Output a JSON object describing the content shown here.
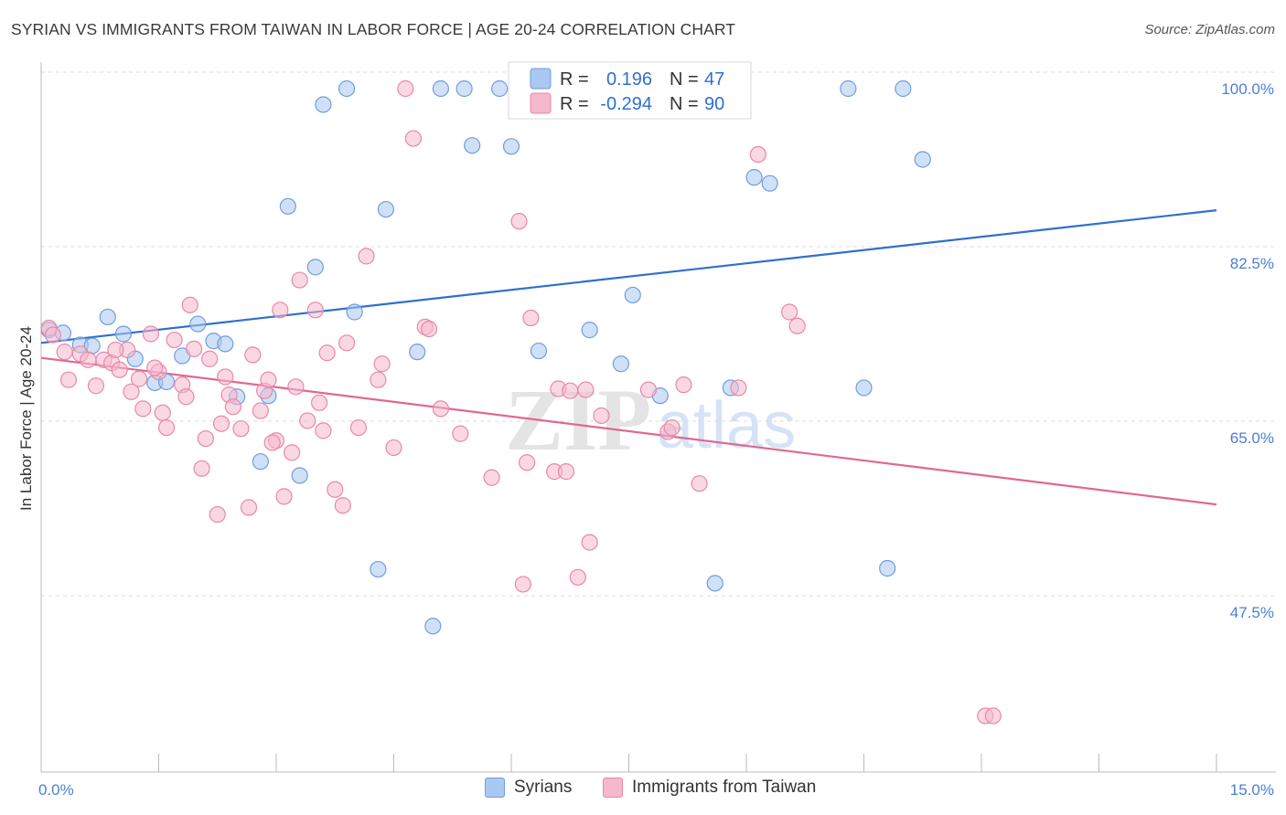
{
  "title": "SYRIAN VS IMMIGRANTS FROM TAIWAN IN LABOR FORCE | AGE 20-24 CORRELATION CHART",
  "source": "Source: ZipAtlas.com",
  "watermark": {
    "zip": "ZIP",
    "atlas": "atlas"
  },
  "colors": {
    "blue_fill": "#aac8f0",
    "blue_stroke": "#6f9de0",
    "blue_line": "#2f6fcf",
    "blue_text": "#2f6fcf",
    "pink_fill": "#f5b8cc",
    "pink_stroke": "#e888a8",
    "pink_line": "#e06890",
    "pink_text": "#e06890",
    "axis_label": "#4a7fd4",
    "grid": "#dcdcdc"
  },
  "legend_top": {
    "r_label": "R =",
    "n_label": "N =",
    "rows": [
      {
        "r": "0.196",
        "n": "47"
      },
      {
        "r": "-0.294",
        "n": "90"
      }
    ]
  },
  "chart_data": {
    "type": "scatter",
    "xlabel": "",
    "ylabel": "In Labor Force | Age 20-24",
    "xlim": [
      0,
      15
    ],
    "ylim": [
      30,
      103
    ],
    "x_tick_labels": [
      {
        "value": 0,
        "label": "0.0%"
      },
      {
        "value": 15,
        "label": "15.0%"
      }
    ],
    "y_ticks": [
      {
        "value": 47.5,
        "label": "47.5%"
      },
      {
        "value": 65.0,
        "label": "65.0%"
      },
      {
        "value": 82.5,
        "label": "82.5%"
      },
      {
        "value": 100.0,
        "label": "100.0%"
      }
    ],
    "series": [
      {
        "name": "Syrians",
        "color": "blue",
        "trend": {
          "x": [
            0,
            15
          ],
          "y": [
            74.5,
            87.8
          ]
        },
        "points": [
          [
            0.1,
            75.8
          ],
          [
            0.28,
            75.5
          ],
          [
            0.5,
            74.3
          ],
          [
            0.65,
            74.2
          ],
          [
            0.85,
            77.1
          ],
          [
            1.05,
            75.4
          ],
          [
            1.2,
            72.9
          ],
          [
            1.45,
            70.5
          ],
          [
            1.6,
            70.6
          ],
          [
            1.8,
            73.2
          ],
          [
            2.0,
            76.4
          ],
          [
            2.2,
            74.7
          ],
          [
            2.35,
            74.4
          ],
          [
            2.5,
            69.1
          ],
          [
            2.8,
            62.6
          ],
          [
            2.9,
            69.2
          ],
          [
            3.15,
            88.2
          ],
          [
            3.3,
            61.2
          ],
          [
            3.5,
            82.1
          ],
          [
            3.6,
            98.4
          ],
          [
            3.9,
            100.0
          ],
          [
            4.0,
            77.6
          ],
          [
            4.3,
            51.8
          ],
          [
            4.4,
            87.9
          ],
          [
            4.8,
            73.6
          ],
          [
            5.0,
            46.1
          ],
          [
            5.1,
            100.0
          ],
          [
            5.4,
            100.0
          ],
          [
            5.5,
            94.3
          ],
          [
            5.85,
            100.0
          ],
          [
            6.0,
            94.2
          ],
          [
            6.35,
            73.7
          ],
          [
            6.9,
            100.0
          ],
          [
            7.0,
            75.8
          ],
          [
            7.4,
            72.4
          ],
          [
            7.9,
            69.2
          ],
          [
            7.55,
            79.3
          ],
          [
            8.6,
            50.4
          ],
          [
            8.8,
            70.0
          ],
          [
            9.1,
            91.1
          ],
          [
            9.3,
            90.5
          ],
          [
            10.3,
            100.0
          ],
          [
            10.5,
            70.0
          ],
          [
            10.8,
            51.9
          ],
          [
            11.0,
            100.0
          ],
          [
            11.25,
            92.9
          ],
          [
            6.8,
            99.8
          ]
        ]
      },
      {
        "name": "Immigrants from Taiwan",
        "color": "pink",
        "trend": {
          "x": [
            0,
            15
          ],
          "y": [
            73.0,
            58.3
          ]
        },
        "points": [
          [
            0.1,
            76.0
          ],
          [
            0.15,
            75.3
          ],
          [
            0.3,
            73.6
          ],
          [
            0.35,
            70.8
          ],
          [
            0.5,
            73.4
          ],
          [
            0.6,
            72.8
          ],
          [
            0.7,
            70.2
          ],
          [
            0.8,
            72.8
          ],
          [
            0.9,
            72.5
          ],
          [
            1.0,
            71.8
          ],
          [
            1.1,
            73.8
          ],
          [
            1.15,
            69.6
          ],
          [
            1.25,
            70.9
          ],
          [
            1.3,
            67.9
          ],
          [
            1.4,
            75.4
          ],
          [
            1.5,
            71.6
          ],
          [
            1.55,
            67.5
          ],
          [
            1.6,
            66.0
          ],
          [
            1.7,
            74.8
          ],
          [
            1.8,
            70.3
          ],
          [
            1.85,
            69.1
          ],
          [
            1.9,
            78.3
          ],
          [
            1.95,
            73.9
          ],
          [
            2.05,
            61.9
          ],
          [
            2.1,
            64.9
          ],
          [
            2.15,
            72.9
          ],
          [
            2.25,
            57.3
          ],
          [
            2.35,
            71.1
          ],
          [
            2.4,
            69.3
          ],
          [
            2.45,
            68.1
          ],
          [
            2.55,
            65.9
          ],
          [
            2.65,
            58.0
          ],
          [
            2.7,
            73.3
          ],
          [
            2.8,
            67.7
          ],
          [
            2.85,
            69.7
          ],
          [
            2.9,
            70.8
          ],
          [
            3.0,
            64.7
          ],
          [
            3.05,
            77.8
          ],
          [
            3.1,
            59.1
          ],
          [
            3.2,
            63.5
          ],
          [
            3.25,
            70.1
          ],
          [
            3.3,
            80.8
          ],
          [
            3.4,
            66.7
          ],
          [
            3.5,
            77.8
          ],
          [
            3.55,
            68.5
          ],
          [
            3.65,
            73.5
          ],
          [
            3.75,
            59.8
          ],
          [
            3.85,
            58.2
          ],
          [
            3.9,
            74.5
          ],
          [
            4.05,
            66.0
          ],
          [
            4.15,
            83.2
          ],
          [
            4.3,
            70.8
          ],
          [
            4.35,
            72.4
          ],
          [
            4.5,
            64.0
          ],
          [
            4.65,
            100.0
          ],
          [
            4.75,
            95.0
          ],
          [
            4.9,
            76.1
          ],
          [
            5.1,
            67.9
          ],
          [
            5.35,
            65.4
          ],
          [
            5.75,
            61.0
          ],
          [
            6.1,
            86.7
          ],
          [
            6.15,
            50.3
          ],
          [
            6.25,
            77.0
          ],
          [
            6.55,
            61.6
          ],
          [
            6.6,
            69.9
          ],
          [
            6.7,
            61.6
          ],
          [
            6.75,
            69.7
          ],
          [
            6.85,
            51.0
          ],
          [
            7.0,
            54.5
          ],
          [
            7.1,
            100.0
          ],
          [
            7.15,
            67.2
          ],
          [
            7.75,
            69.8
          ],
          [
            8.0,
            65.6
          ],
          [
            8.2,
            70.3
          ],
          [
            8.4,
            60.4
          ],
          [
            8.9,
            70.0
          ],
          [
            9.15,
            93.4
          ],
          [
            9.55,
            77.6
          ],
          [
            9.65,
            76.2
          ],
          [
            12.05,
            37.1
          ],
          [
            12.15,
            37.1
          ],
          [
            2.3,
            66.4
          ],
          [
            6.95,
            69.8
          ],
          [
            0.95,
            73.8
          ],
          [
            1.45,
            72.0
          ],
          [
            2.95,
            64.5
          ],
          [
            3.6,
            65.7
          ],
          [
            4.95,
            75.9
          ],
          [
            6.2,
            62.5
          ],
          [
            8.05,
            66.0
          ]
        ]
      }
    ]
  },
  "bottom_legend": [
    {
      "label": "Syrians",
      "color": "blue"
    },
    {
      "label": "Immigrants from Taiwan",
      "color": "pink"
    }
  ]
}
